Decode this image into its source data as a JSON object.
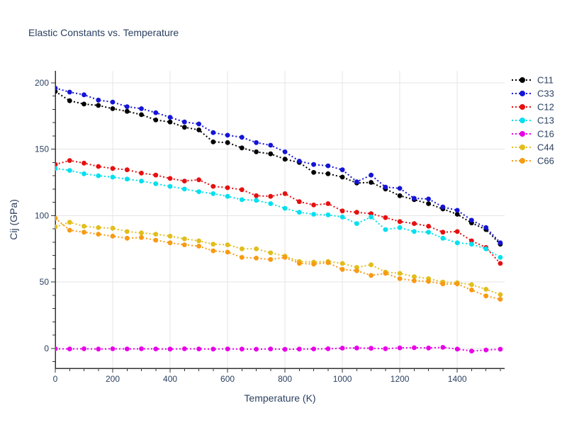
{
  "chart_data": {
    "type": "line",
    "title": "Elastic Constants vs. Temperature",
    "xlabel": "Temperature (K)",
    "ylabel": "Cij (GPa)",
    "xlim": [
      0,
      1565
    ],
    "ylim": [
      -15,
      209
    ],
    "x_major_ticks": [
      0,
      200,
      400,
      600,
      800,
      1000,
      1200,
      1400
    ],
    "y_major_ticks": [
      0,
      50,
      100,
      150,
      200
    ],
    "x_minor_step": 50,
    "y_minor_step": 10,
    "grid": true,
    "legend_position": "right",
    "line_dash": "dotted",
    "marker": "circle",
    "colors": {
      "text": "#2a3f5f",
      "axis": "#333333",
      "grid": "#e5e5e5",
      "background": "#ffffff"
    },
    "x": [
      0,
      50,
      100,
      150,
      200,
      250,
      300,
      350,
      400,
      450,
      500,
      550,
      600,
      650,
      700,
      750,
      800,
      850,
      900,
      950,
      1000,
      1050,
      1100,
      1150,
      1200,
      1250,
      1300,
      1350,
      1400,
      1450,
      1500,
      1550
    ],
    "series": [
      {
        "name": "C11",
        "color": "#000000",
        "values": [
          193.5,
          186.5,
          184,
          183,
          180.5,
          178.5,
          176,
          172,
          170.5,
          166.5,
          164.5,
          155.5,
          155,
          151,
          148,
          146.5,
          142.5,
          140,
          132.5,
          131.5,
          129,
          124.5,
          125,
          120,
          115,
          112,
          109,
          105,
          101,
          94.5,
          89.5,
          78.5
        ]
      },
      {
        "name": "C33",
        "color": "#1414d6",
        "values": [
          196,
          193,
          191,
          187,
          185.5,
          182,
          180.5,
          177.5,
          174,
          170.5,
          169,
          162.5,
          160.5,
          159,
          155,
          153,
          148,
          141,
          138.5,
          137.5,
          134.5,
          125.5,
          130.5,
          121.5,
          120.5,
          113,
          112.5,
          106.5,
          104,
          96.5,
          91,
          79.5
        ]
      },
      {
        "name": "C12",
        "color": "#e61010",
        "values": [
          138.5,
          141.5,
          139.5,
          137,
          135.5,
          134.5,
          132,
          130.5,
          128,
          126,
          127,
          122,
          121,
          119.5,
          115,
          114.5,
          116.5,
          110.5,
          108,
          109,
          103.5,
          102.5,
          101.5,
          98.5,
          95.5,
          94,
          92,
          87.5,
          88,
          81,
          76,
          64
        ]
      },
      {
        "name": "C13",
        "color": "#00e0ee",
        "values": [
          135.5,
          134,
          131.5,
          130,
          129,
          127.5,
          126,
          124,
          122,
          120,
          118,
          116.5,
          114.5,
          112,
          111.5,
          109,
          105.5,
          102.5,
          101,
          100.5,
          99,
          94,
          99,
          89.5,
          91,
          88,
          87.5,
          83,
          79.5,
          78.5,
          75,
          68.5
        ]
      },
      {
        "name": "C16",
        "color": "#e800e8",
        "values": [
          -0.3,
          -0.4,
          -0.3,
          -0.5,
          -0.3,
          -0.4,
          -0.3,
          -0.4,
          -0.5,
          -0.3,
          -0.4,
          -0.5,
          -0.4,
          -0.5,
          -0.6,
          -0.4,
          -0.7,
          -0.5,
          -0.4,
          -0.3,
          0.2,
          0.3,
          0.1,
          -0.2,
          0.4,
          0.5,
          0.3,
          0.8,
          -0.5,
          -2,
          -1.2,
          -0.6
        ]
      },
      {
        "name": "C44",
        "color": "#e2bd1c",
        "values": [
          91.5,
          95,
          92,
          91,
          90.5,
          88,
          87,
          86,
          84.5,
          82.5,
          81,
          78.5,
          78,
          75,
          75,
          72,
          69.5,
          65.5,
          65,
          65.5,
          64,
          61,
          63,
          57.5,
          56.5,
          54,
          52.5,
          50,
          49.5,
          48,
          44.5,
          40.5
        ]
      },
      {
        "name": "C66",
        "color": "#f79a14",
        "values": [
          98,
          89,
          87.5,
          86,
          84.5,
          83,
          83.5,
          81.5,
          79.5,
          78,
          77,
          73.5,
          72.5,
          68.5,
          68,
          67,
          68.5,
          64,
          63.5,
          64.5,
          59.5,
          58.5,
          55,
          56.5,
          52.5,
          51,
          50.5,
          48.5,
          48.5,
          44,
          39.5,
          37
        ]
      }
    ]
  }
}
